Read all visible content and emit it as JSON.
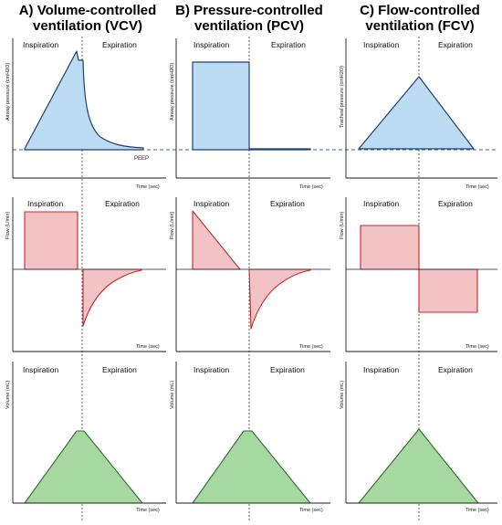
{
  "columns": [
    {
      "title_line1": "A) Volume-controlled",
      "title_line2": "ventilation (VCV)",
      "pressure_axis": "Airway pressure (cmH2O)",
      "peep_label": "PEEP",
      "pressure_shape": "ramp-peak-decay",
      "flow_shape": "square-inspiration-exponential-expiration"
    },
    {
      "title_line1": "B) Pressure-controlled",
      "title_line2": "ventilation (PCV)",
      "pressure_axis": "Airway pressure (cmH2O)",
      "pressure_shape": "square",
      "flow_shape": "decelerating-inspiration-exponential-expiration"
    },
    {
      "title_line1": "C) Flow-controlled",
      "title_line2": "ventilation (FCV)",
      "pressure_axis": "Tracheal pressure (cmH2O)",
      "pressure_shape": "triangle",
      "flow_shape": "square-both-phases"
    }
  ],
  "phases": {
    "inspiration": "Inspiration",
    "expiration": "Expiration"
  },
  "axes": {
    "flow": "Flow (L/min)",
    "volume": "Volume (mL)",
    "time": "Time (sec)"
  },
  "colors": {
    "pressure": "#bcdcf4",
    "flow": "#f3c2c4",
    "volume": "#a6d9a0"
  }
}
